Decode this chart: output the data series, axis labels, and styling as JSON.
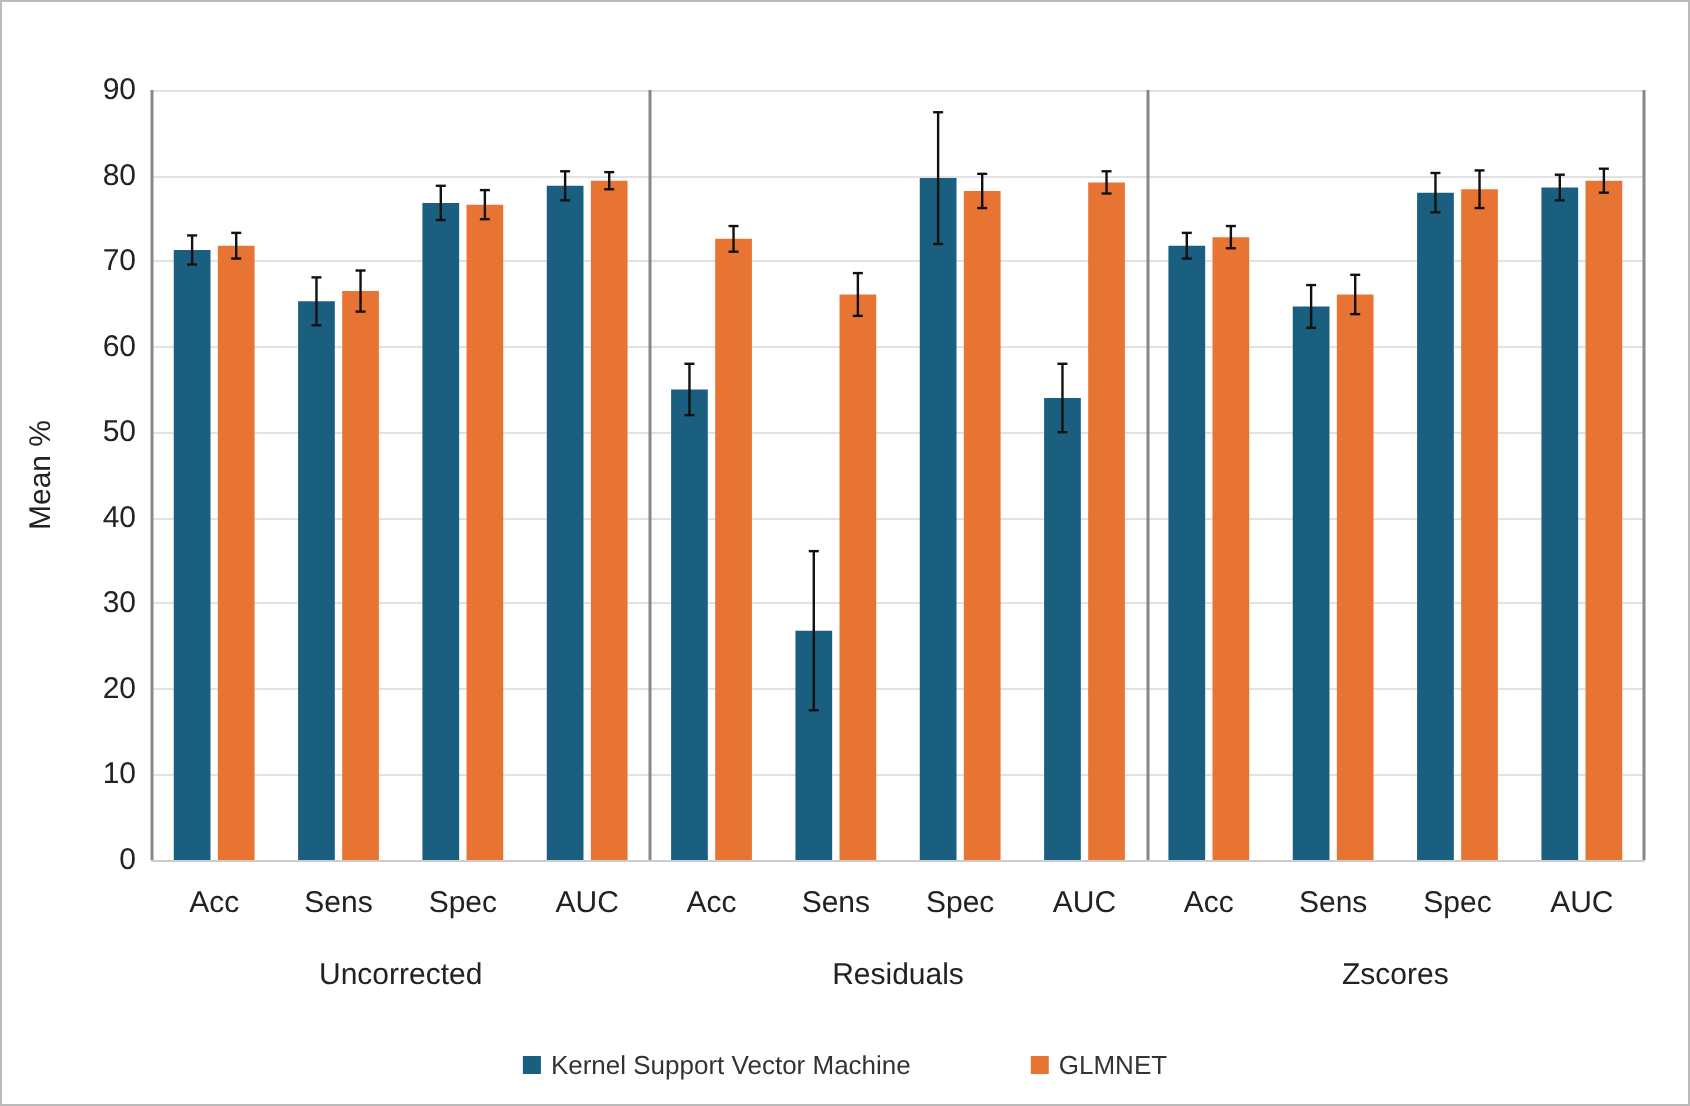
{
  "chart_data": {
    "type": "bar",
    "ylabel": "Mean %",
    "categories": [
      "Acc",
      "Sens",
      "Spec",
      "AUC",
      "Acc",
      "Sens",
      "Spec",
      "AUC",
      "Acc",
      "Sens",
      "Spec",
      "AUC"
    ],
    "annotations": [
      "Uncorrected",
      "Residuals",
      "Zscores"
    ],
    "series": [
      {
        "name": "Kernel Support Vector Machine",
        "color": "#1a5f80",
        "values": [
          71.3,
          65.3,
          76.8,
          78.8,
          55.0,
          26.8,
          79.7,
          54.0,
          71.8,
          64.7,
          78.0,
          78.6
        ],
        "errors": [
          1.7,
          2.8,
          2.0,
          1.7,
          3.0,
          9.3,
          7.7,
          4.0,
          1.5,
          2.5,
          2.3,
          1.5
        ]
      },
      {
        "name": "GLMNET",
        "color": "#e87434",
        "values": [
          71.8,
          66.5,
          76.6,
          79.4,
          72.6,
          66.1,
          78.2,
          79.2,
          72.8,
          66.1,
          78.4,
          79.4
        ],
        "errors": [
          1.5,
          2.4,
          1.7,
          1.0,
          1.5,
          2.5,
          2.0,
          1.3,
          1.3,
          2.3,
          2.2,
          1.4
        ]
      }
    ],
    "ylim": [
      0,
      90
    ],
    "yticks": [
      0,
      10,
      20,
      30,
      40,
      50,
      60,
      70,
      80,
      90
    ],
    "grid": "y",
    "legend": "bottom"
  }
}
